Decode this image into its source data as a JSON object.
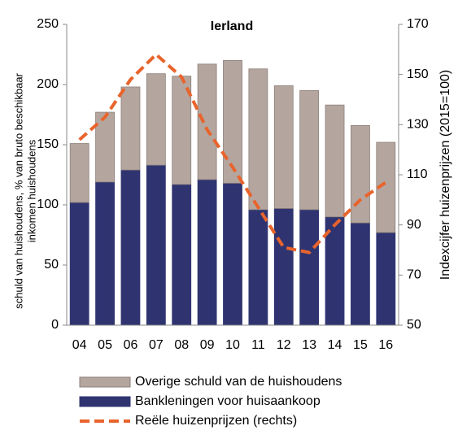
{
  "chart_data": {
    "type": "bar-line",
    "title": "Ierland",
    "ylabel": [
      "schuld van huishoudens, % van bruto beschikbaar",
      "inkomen huishoudens"
    ],
    "y2label": "Indexcijfer huizenprijzen (2015=100)",
    "categories": [
      "04",
      "05",
      "06",
      "07",
      "08",
      "09",
      "10",
      "11",
      "12",
      "13",
      "14",
      "15",
      "16"
    ],
    "series": [
      {
        "name": "Overige schuld van de huishoudens",
        "type": "bar",
        "color": "#b4a69f",
        "values": [
          49,
          58,
          69,
          76,
          90,
          96,
          102,
          117,
          102,
          99,
          93,
          81,
          75
        ]
      },
      {
        "name": "Bankleningen voor huisaankoop",
        "type": "bar",
        "color": "#2f3471",
        "values": [
          102,
          119,
          129,
          133,
          117,
          121,
          118,
          96,
          97,
          96,
          90,
          85,
          77
        ]
      },
      {
        "name": "Reële huizenprijzen (rechts)",
        "type": "line",
        "axis": "y2",
        "color": "#e8642c",
        "values": [
          124,
          133,
          148,
          158,
          149,
          128,
          113,
          97,
          81,
          79,
          90,
          100,
          107
        ]
      }
    ],
    "ylim": [
      0,
      250
    ],
    "yticks": [
      0,
      50,
      100,
      150,
      200,
      250
    ],
    "y2lim": [
      50,
      170
    ],
    "y2ticks": [
      50,
      70,
      90,
      110,
      130,
      150,
      170
    ],
    "grid": false
  }
}
